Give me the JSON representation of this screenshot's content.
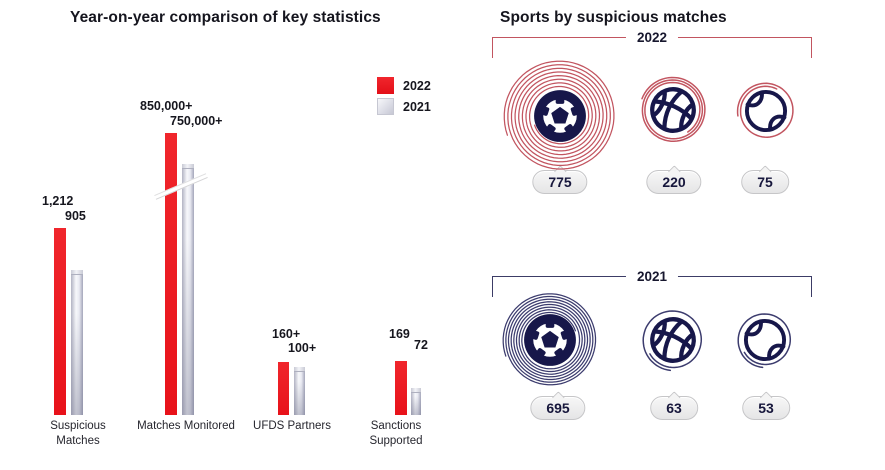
{
  "colors": {
    "bar_red": "#e8121a",
    "bar_silver": "#dcdde6",
    "ball_navy": "#17174a",
    "spiral_red": "#c25560",
    "spiral_navy": "#3c3c6e",
    "badge_bg": "#ededed",
    "text_dark": "#15151e"
  },
  "chart_data": [
    {
      "type": "bar",
      "title": "Year-on-year comparison of key statistics",
      "categories": [
        "Suspicious Matches",
        "Matches Monitored",
        "UFDS Partners",
        "Sanctions Supported"
      ],
      "series": [
        {
          "name": "2022",
          "color": "#e8121a",
          "values": [
            1212,
            850000,
            160,
            169
          ],
          "value_labels": [
            "1,212",
            "850,000+",
            "160+",
            "169"
          ]
        },
        {
          "name": "2021",
          "color": "#dcdde6",
          "values": [
            905,
            750000,
            100,
            72
          ],
          "value_labels": [
            "905",
            "750,000+",
            "100+",
            "72"
          ]
        }
      ],
      "legend_position": "top-right",
      "grid": false,
      "ylabel": "",
      "xlabel": "",
      "note": "Matches Monitored bars drawn with an axis-break slash"
    },
    {
      "type": "bar",
      "style": "pictorial-spiral-icons",
      "title": "Sports by suspicious matches",
      "categories": [
        "Football",
        "Basketball",
        "Tennis"
      ],
      "series": [
        {
          "name": "2022",
          "color": "#c25560",
          "values": [
            775,
            220,
            75
          ]
        },
        {
          "name": "2021",
          "color": "#3c3c6e",
          "values": [
            695,
            63,
            53
          ]
        }
      ],
      "legend_position": "bracket-above-rows",
      "grid": false
    }
  ]
}
